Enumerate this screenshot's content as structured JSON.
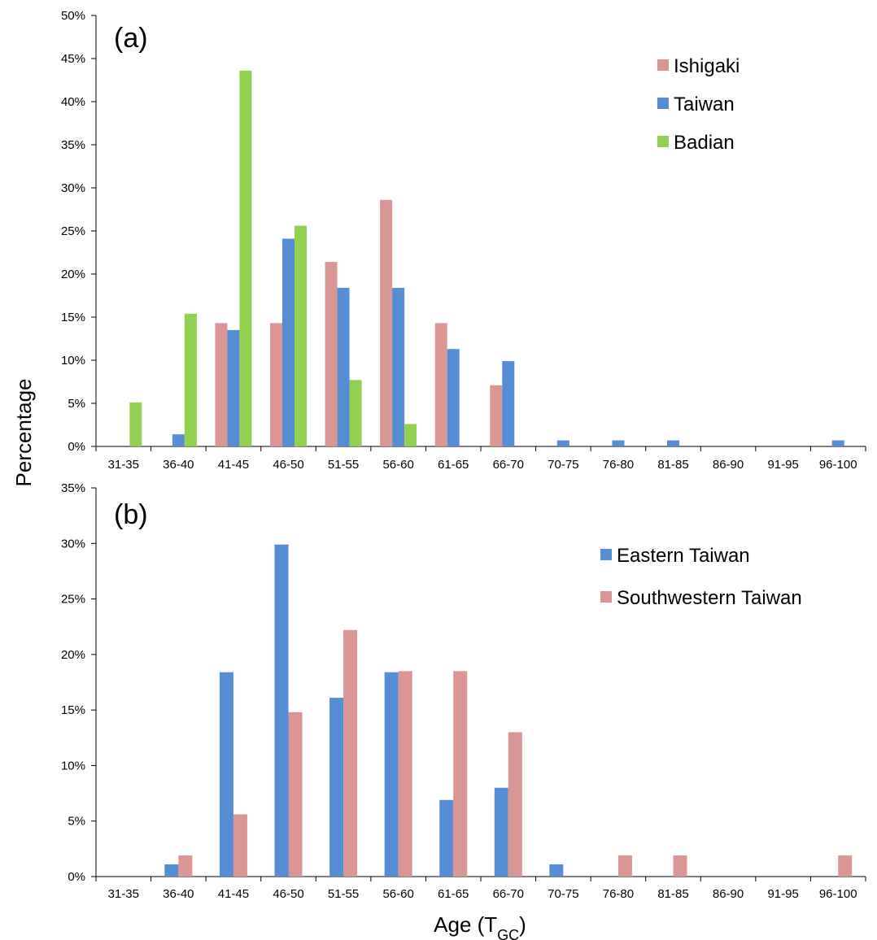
{
  "ylabel": "Percentage",
  "xlabel": {
    "main": "Age (T",
    "sub": "GC",
    "close": ")"
  },
  "chart_data": [
    {
      "type": "bar",
      "panel_label": "(a)",
      "categories": [
        "31-35",
        "36-40",
        "41-45",
        "46-50",
        "51-55",
        "56-60",
        "61-65",
        "66-70",
        "70-75",
        "76-80",
        "81-85",
        "86-90",
        "91-95",
        "96-100"
      ],
      "ylim": [
        0,
        50
      ],
      "yticks": [
        0,
        5,
        10,
        15,
        20,
        25,
        30,
        35,
        40,
        45,
        50
      ],
      "ytick_labels": [
        "0%",
        "5%",
        "10%",
        "15%",
        "20%",
        "25%",
        "30%",
        "35%",
        "40%",
        "45%",
        "50%"
      ],
      "legend_position": "top-right",
      "grid": false,
      "series": [
        {
          "name": "Ishigaki",
          "color": "#D99694",
          "values": [
            0,
            0,
            14.3,
            14.3,
            21.4,
            28.6,
            14.3,
            7.1,
            0,
            0,
            0,
            0,
            0,
            0
          ]
        },
        {
          "name": "Taiwan",
          "color": "#558ED5",
          "values": [
            0,
            1.4,
            13.5,
            24.1,
            18.4,
            18.4,
            11.3,
            9.9,
            0.7,
            0.7,
            0.7,
            0,
            0,
            0.7
          ]
        },
        {
          "name": "Badian",
          "color": "#92D050",
          "values": [
            5.1,
            15.4,
            43.6,
            25.6,
            7.7,
            2.6,
            0,
            0,
            0,
            0,
            0,
            0,
            0,
            0
          ]
        }
      ]
    },
    {
      "type": "bar",
      "panel_label": "(b)",
      "categories": [
        "31-35",
        "36-40",
        "41-45",
        "46-50",
        "51-55",
        "56-60",
        "61-65",
        "66-70",
        "70-75",
        "76-80",
        "81-85",
        "86-90",
        "91-95",
        "96-100"
      ],
      "ylim": [
        0,
        35
      ],
      "yticks": [
        0,
        5,
        10,
        15,
        20,
        25,
        30,
        35
      ],
      "ytick_labels": [
        "0%",
        "5%",
        "10%",
        "15%",
        "20%",
        "25%",
        "30%",
        "35%"
      ],
      "legend_position": "top-right",
      "grid": false,
      "series": [
        {
          "name": "Eastern Taiwan",
          "color": "#558ED5",
          "values": [
            0,
            1.1,
            18.4,
            29.9,
            16.1,
            18.4,
            6.9,
            8.0,
            1.1,
            0,
            0,
            0,
            0,
            0
          ]
        },
        {
          "name": "Southwestern Taiwan",
          "color": "#D99694",
          "values": [
            0,
            1.9,
            5.6,
            14.8,
            22.2,
            18.5,
            18.5,
            13.0,
            0,
            1.9,
            1.9,
            0,
            0,
            1.9
          ]
        }
      ]
    }
  ]
}
